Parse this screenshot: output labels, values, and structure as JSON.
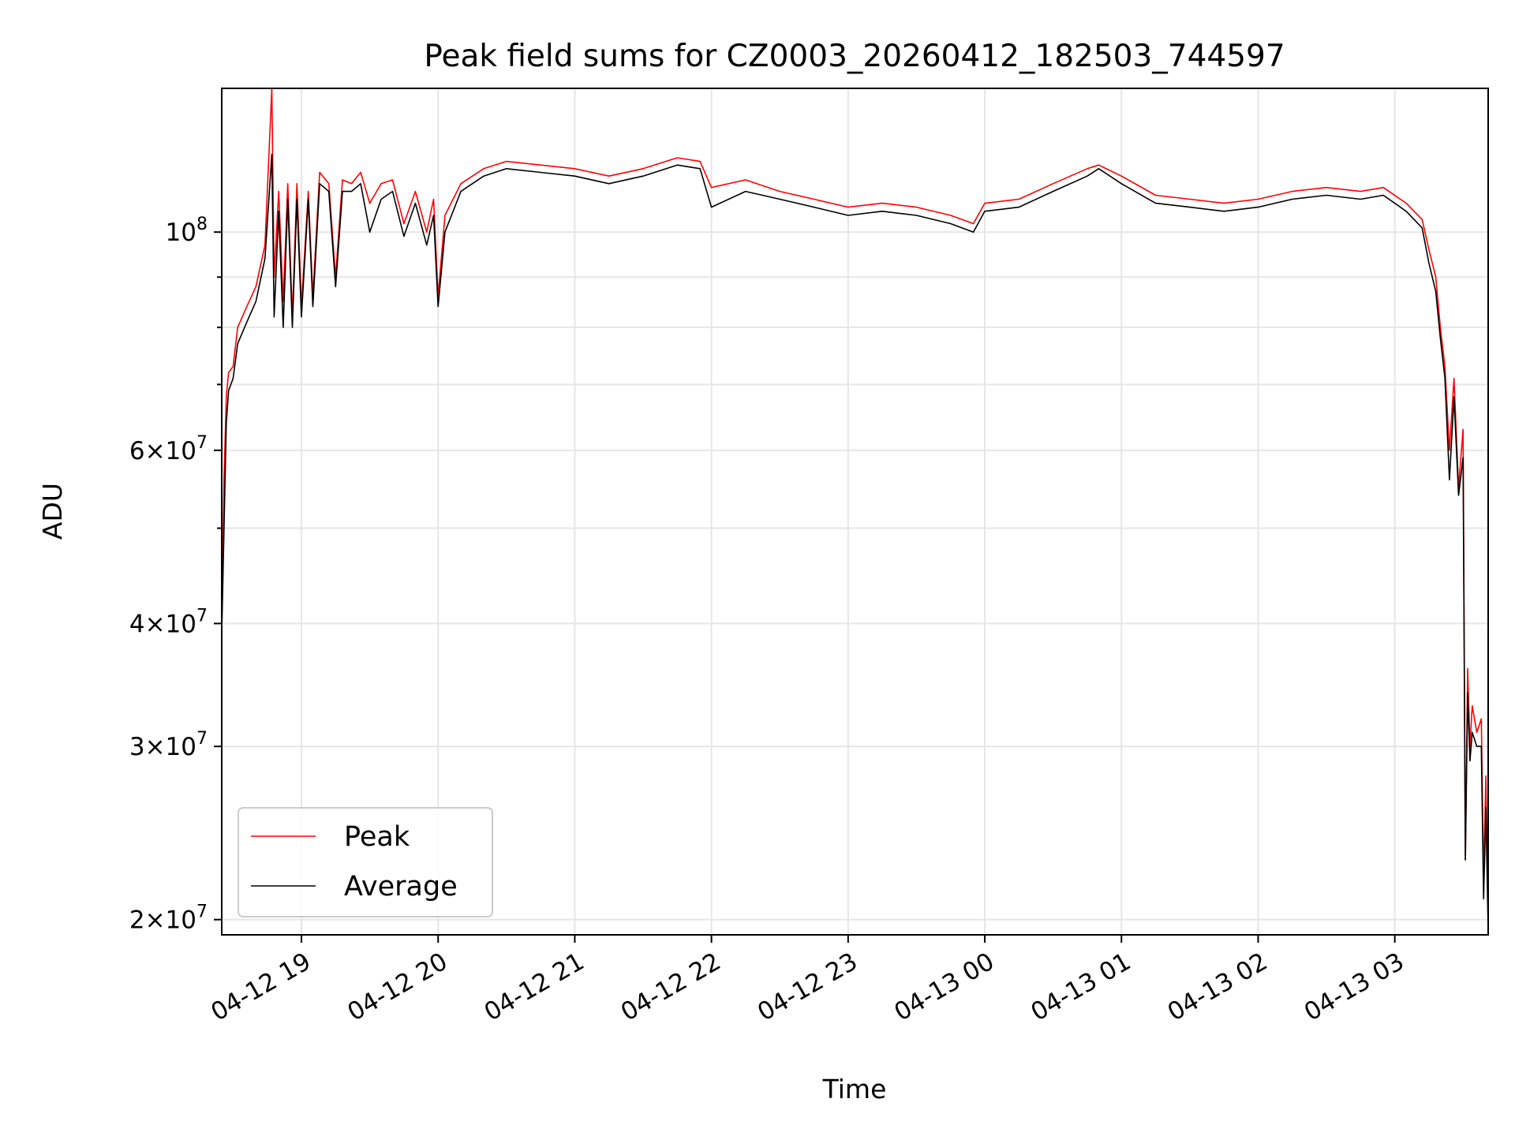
{
  "chart_data": {
    "type": "line",
    "title": "Peak field sums for CZ0003_20260412_182503_744597",
    "xlabel": "Time",
    "ylabel": "ADU",
    "x_range": [
      "2026-04-12 18:25",
      "2026-04-13 03:41"
    ],
    "y_range": [
      19300000,
      140000000
    ],
    "y_scale": "log",
    "grid": true,
    "x_ticks": [
      {
        "value": "2026-04-12 19:00",
        "label": "04-12 19"
      },
      {
        "value": "2026-04-12 20:00",
        "label": "04-12 20"
      },
      {
        "value": "2026-04-12 21:00",
        "label": "04-12 21"
      },
      {
        "value": "2026-04-12 22:00",
        "label": "04-12 22"
      },
      {
        "value": "2026-04-12 23:00",
        "label": "04-12 23"
      },
      {
        "value": "2026-04-13 00:00",
        "label": "04-13 00"
      },
      {
        "value": "2026-04-13 01:00",
        "label": "04-13 01"
      },
      {
        "value": "2026-04-13 02:00",
        "label": "04-13 02"
      },
      {
        "value": "2026-04-13 03:00",
        "label": "04-13 03"
      }
    ],
    "y_ticks_major": [
      {
        "value": 100000000,
        "base": "10",
        "exp": "8",
        "mant": ""
      },
      {
        "value": 60000000,
        "base": "10",
        "exp": "7",
        "mant": "6"
      },
      {
        "value": 40000000,
        "base": "10",
        "exp": "7",
        "mant": "4"
      },
      {
        "value": 30000000,
        "base": "10",
        "exp": "7",
        "mant": "3"
      },
      {
        "value": 20000000,
        "base": "10",
        "exp": "7",
        "mant": "2"
      }
    ],
    "y_ticks_minor": [
      90000000,
      80000000,
      70000000,
      50000000
    ],
    "legend": {
      "placement": "lower-left"
    },
    "series": [
      {
        "name": "Peak",
        "color": "#ff0000",
        "x": [
          "2026-04-12 18:25",
          "2026-04-12 18:26",
          "2026-04-12 18:27",
          "2026-04-12 18:28",
          "2026-04-12 18:30",
          "2026-04-12 18:32",
          "2026-04-12 18:36",
          "2026-04-12 18:40",
          "2026-04-12 18:44",
          "2026-04-12 18:47",
          "2026-04-12 18:48",
          "2026-04-12 18:50",
          "2026-04-12 18:52",
          "2026-04-12 18:54",
          "2026-04-12 18:56",
          "2026-04-12 18:58",
          "2026-04-12 19:00",
          "2026-04-12 19:03",
          "2026-04-12 19:05",
          "2026-04-12 19:08",
          "2026-04-12 19:12",
          "2026-04-12 19:15",
          "2026-04-12 19:18",
          "2026-04-12 19:22",
          "2026-04-12 19:26",
          "2026-04-12 19:30",
          "2026-04-12 19:35",
          "2026-04-12 19:40",
          "2026-04-12 19:45",
          "2026-04-12 19:50",
          "2026-04-12 19:55",
          "2026-04-12 19:58",
          "2026-04-12 20:00",
          "2026-04-12 20:03",
          "2026-04-12 20:10",
          "2026-04-12 20:20",
          "2026-04-12 20:30",
          "2026-04-12 20:45",
          "2026-04-12 21:00",
          "2026-04-12 21:15",
          "2026-04-12 21:30",
          "2026-04-12 21:45",
          "2026-04-12 21:55",
          "2026-04-12 22:00",
          "2026-04-12 22:15",
          "2026-04-12 22:30",
          "2026-04-12 22:45",
          "2026-04-12 23:00",
          "2026-04-12 23:15",
          "2026-04-12 23:30",
          "2026-04-12 23:45",
          "2026-04-12 23:55",
          "2026-04-13 00:00",
          "2026-04-13 00:15",
          "2026-04-13 00:30",
          "2026-04-13 00:45",
          "2026-04-13 00:50",
          "2026-04-13 01:00",
          "2026-04-13 01:15",
          "2026-04-13 01:30",
          "2026-04-13 01:45",
          "2026-04-13 02:00",
          "2026-04-13 02:15",
          "2026-04-13 02:30",
          "2026-04-13 02:45",
          "2026-04-13 02:55",
          "2026-04-13 03:05",
          "2026-04-13 03:12",
          "2026-04-13 03:15",
          "2026-04-13 03:18",
          "2026-04-13 03:20",
          "2026-04-13 03:22",
          "2026-04-13 03:24",
          "2026-04-13 03:26",
          "2026-04-13 03:28",
          "2026-04-13 03:30",
          "2026-04-13 03:31",
          "2026-04-13 03:32",
          "2026-04-13 03:33",
          "2026-04-13 03:34",
          "2026-04-13 03:36",
          "2026-04-13 03:38",
          "2026-04-13 03:39",
          "2026-04-13 03:40",
          "2026-04-13 03:41"
        ],
        "y": [
          40000000,
          56000000,
          68000000,
          72000000,
          73000000,
          80000000,
          84000000,
          88000000,
          97000000,
          140000000,
          90000000,
          110000000,
          85000000,
          112000000,
          82000000,
          112000000,
          84000000,
          110000000,
          86000000,
          115000000,
          112000000,
          90000000,
          113000000,
          112000000,
          115000000,
          107000000,
          112000000,
          113000000,
          102000000,
          110000000,
          100000000,
          108000000,
          86000000,
          104000000,
          112000000,
          116000000,
          118000000,
          117000000,
          116000000,
          114000000,
          116000000,
          119000000,
          118000000,
          111000000,
          113000000,
          110000000,
          108000000,
          106000000,
          107000000,
          106000000,
          104000000,
          102000000,
          107000000,
          108000000,
          112000000,
          116000000,
          117000000,
          114000000,
          109000000,
          108000000,
          107000000,
          108000000,
          110000000,
          111000000,
          110000000,
          111000000,
          107000000,
          103000000,
          96000000,
          90000000,
          80000000,
          73000000,
          60000000,
          71000000,
          55000000,
          63000000,
          23000000,
          36000000,
          30000000,
          33000000,
          31000000,
          32000000,
          22000000,
          28000000,
          20000000
        ]
      },
      {
        "name": "Average",
        "color": "#000000",
        "x": [
          "2026-04-12 18:25",
          "2026-04-12 18:26",
          "2026-04-12 18:27",
          "2026-04-12 18:28",
          "2026-04-12 18:30",
          "2026-04-12 18:32",
          "2026-04-12 18:36",
          "2026-04-12 18:40",
          "2026-04-12 18:44",
          "2026-04-12 18:47",
          "2026-04-12 18:48",
          "2026-04-12 18:50",
          "2026-04-12 18:52",
          "2026-04-12 18:54",
          "2026-04-12 18:56",
          "2026-04-12 18:58",
          "2026-04-12 19:00",
          "2026-04-12 19:03",
          "2026-04-12 19:05",
          "2026-04-12 19:08",
          "2026-04-12 19:12",
          "2026-04-12 19:15",
          "2026-04-12 19:18",
          "2026-04-12 19:22",
          "2026-04-12 19:26",
          "2026-04-12 19:30",
          "2026-04-12 19:35",
          "2026-04-12 19:40",
          "2026-04-12 19:45",
          "2026-04-12 19:50",
          "2026-04-12 19:55",
          "2026-04-12 19:58",
          "2026-04-12 20:00",
          "2026-04-12 20:03",
          "2026-04-12 20:10",
          "2026-04-12 20:20",
          "2026-04-12 20:30",
          "2026-04-12 20:45",
          "2026-04-12 21:00",
          "2026-04-12 21:15",
          "2026-04-12 21:30",
          "2026-04-12 21:45",
          "2026-04-12 21:55",
          "2026-04-12 22:00",
          "2026-04-12 22:15",
          "2026-04-12 22:30",
          "2026-04-12 22:45",
          "2026-04-12 23:00",
          "2026-04-12 23:15",
          "2026-04-12 23:30",
          "2026-04-12 23:45",
          "2026-04-12 23:55",
          "2026-04-13 00:00",
          "2026-04-13 00:15",
          "2026-04-13 00:30",
          "2026-04-13 00:45",
          "2026-04-13 00:50",
          "2026-04-13 01:00",
          "2026-04-13 01:15",
          "2026-04-13 01:30",
          "2026-04-13 01:45",
          "2026-04-13 02:00",
          "2026-04-13 02:15",
          "2026-04-13 02:30",
          "2026-04-13 02:45",
          "2026-04-13 02:55",
          "2026-04-13 03:05",
          "2026-04-13 03:12",
          "2026-04-13 03:15",
          "2026-04-13 03:18",
          "2026-04-13 03:20",
          "2026-04-13 03:22",
          "2026-04-13 03:24",
          "2026-04-13 03:26",
          "2026-04-13 03:28",
          "2026-04-13 03:30",
          "2026-04-13 03:31",
          "2026-04-13 03:32",
          "2026-04-13 03:33",
          "2026-04-13 03:34",
          "2026-04-13 03:36",
          "2026-04-13 03:38",
          "2026-04-13 03:39",
          "2026-04-13 03:40",
          "2026-04-13 03:41"
        ],
        "y": [
          39000000,
          50000000,
          64000000,
          69000000,
          71000000,
          77000000,
          81000000,
          85000000,
          94000000,
          120000000,
          82000000,
          105000000,
          80000000,
          108000000,
          80000000,
          108000000,
          82000000,
          108000000,
          84000000,
          112000000,
          110000000,
          88000000,
          110000000,
          110000000,
          112000000,
          100000000,
          108000000,
          110000000,
          99000000,
          107000000,
          97000000,
          104000000,
          84000000,
          100000000,
          110000000,
          114000000,
          116000000,
          115000000,
          114000000,
          112000000,
          114000000,
          117000000,
          116000000,
          106000000,
          110000000,
          108000000,
          106000000,
          104000000,
          105000000,
          104000000,
          102000000,
          100000000,
          105000000,
          106000000,
          110000000,
          114000000,
          116000000,
          112000000,
          107000000,
          106000000,
          105000000,
          106000000,
          108000000,
          109000000,
          108000000,
          109000000,
          105000000,
          101000000,
          93000000,
          87000000,
          78000000,
          71000000,
          56000000,
          68000000,
          54000000,
          59000000,
          23000000,
          34000000,
          29000000,
          31000000,
          30000000,
          30000000,
          21000000,
          26000000,
          19500000
        ]
      }
    ]
  }
}
